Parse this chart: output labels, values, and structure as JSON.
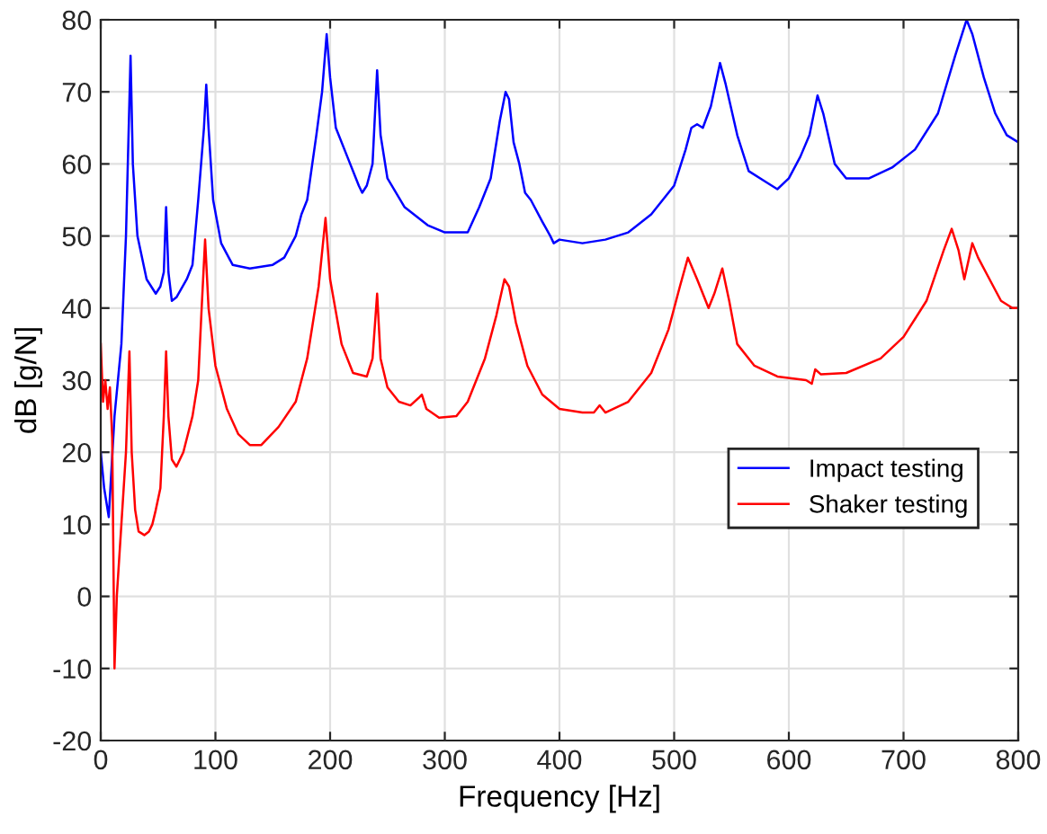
{
  "chart_data": {
    "type": "line",
    "xlabel": "Frequency [Hz]",
    "ylabel": "dB [g/N]",
    "xlim": [
      0,
      800
    ],
    "xticks": [
      0,
      100,
      200,
      300,
      400,
      500,
      600,
      700,
      800
    ],
    "ylim": [
      -20,
      80
    ],
    "yticks": [
      -20,
      -10,
      0,
      10,
      20,
      30,
      40,
      50,
      60,
      70,
      80
    ],
    "grid": true,
    "legend": "right",
    "marker": "none",
    "line_style": "solid",
    "series": [
      {
        "name": "Impact testing",
        "color": "#0000ff",
        "x": [
          0,
          3,
          7,
          12,
          18,
          22,
          26,
          28,
          32,
          40,
          48,
          52,
          55,
          57,
          59,
          62,
          66,
          75,
          80,
          85,
          90,
          92,
          94,
          98,
          105,
          115,
          130,
          150,
          160,
          170,
          175,
          180,
          188,
          193,
          197,
          200,
          205,
          215,
          225,
          228,
          232,
          237,
          241,
          244,
          250,
          265,
          285,
          300,
          320,
          330,
          340,
          348,
          353,
          356,
          360,
          365,
          370,
          375,
          385,
          392,
          395,
          400,
          420,
          440,
          460,
          480,
          500,
          510,
          515,
          520,
          525,
          532,
          540,
          545,
          555,
          565,
          580,
          590,
          600,
          610,
          618,
          625,
          630,
          640,
          650,
          670,
          690,
          710,
          730,
          745,
          755,
          760,
          770,
          780,
          790,
          800
        ],
        "values": [
          20,
          15,
          11,
          25,
          35,
          50,
          75,
          60,
          50,
          44,
          42,
          43,
          45,
          54,
          45,
          41,
          41.5,
          44,
          46,
          55,
          65,
          71,
          65,
          55,
          49,
          46,
          45.5,
          46,
          47,
          50,
          53,
          55,
          64,
          70,
          78,
          72,
          65,
          61,
          57,
          56,
          57,
          60,
          73,
          64,
          58,
          54,
          51.5,
          50.5,
          50.5,
          54,
          58,
          66,
          70,
          69,
          63,
          60,
          56,
          55,
          52,
          50,
          49,
          49.5,
          49,
          49.5,
          50.5,
          53,
          57,
          62,
          65,
          65.5,
          65,
          68,
          74,
          71,
          64,
          59,
          57.5,
          56.5,
          58,
          61,
          64,
          69.5,
          67,
          60,
          58,
          58,
          59.5,
          62,
          67,
          75,
          80,
          78,
          72,
          67,
          64,
          63
        ]
      },
      {
        "name": "Shaker testing",
        "color": "#ff0000",
        "x": [
          0,
          2,
          4,
          6,
          8,
          10,
          12,
          14,
          18,
          22,
          25,
          27,
          30,
          33,
          38,
          42,
          45,
          48,
          52,
          55,
          57,
          59,
          62,
          66,
          72,
          80,
          85,
          88,
          91,
          94,
          100,
          110,
          120,
          130,
          140,
          155,
          170,
          180,
          190,
          196,
          200,
          210,
          220,
          232,
          237,
          241,
          244,
          250,
          260,
          270,
          277,
          280,
          284,
          295,
          310,
          320,
          335,
          345,
          352,
          356,
          362,
          372,
          385,
          400,
          420,
          430,
          435,
          440,
          460,
          480,
          495,
          505,
          512,
          520,
          530,
          535,
          542,
          548,
          555,
          570,
          590,
          615,
          620,
          623,
          628,
          650,
          680,
          700,
          720,
          735,
          742,
          748,
          753,
          760,
          765,
          775,
          785,
          795,
          800
        ],
        "values": [
          35,
          27,
          30,
          26,
          29,
          22,
          -10,
          0,
          10,
          20,
          34,
          20,
          12,
          9,
          8.5,
          9,
          10,
          12,
          15,
          25,
          34,
          25,
          19,
          18,
          20,
          25,
          30,
          40,
          49.5,
          40,
          32,
          26,
          22.5,
          21,
          21,
          23.5,
          27,
          33,
          43,
          52.5,
          44,
          35,
          31,
          30.5,
          33,
          42,
          33,
          29,
          27,
          26.5,
          27.5,
          28,
          26,
          24.8,
          25,
          27,
          33,
          39,
          44,
          43,
          38,
          32,
          28,
          26,
          25.5,
          25.5,
          26.5,
          25.5,
          27,
          31,
          37,
          43,
          47,
          44,
          40,
          42,
          45.5,
          41,
          35,
          32,
          30.5,
          30,
          29.5,
          31.5,
          30.8,
          31,
          33,
          36,
          41,
          48,
          51,
          48,
          44,
          49,
          47,
          44,
          41,
          40,
          40
        ]
      }
    ]
  }
}
